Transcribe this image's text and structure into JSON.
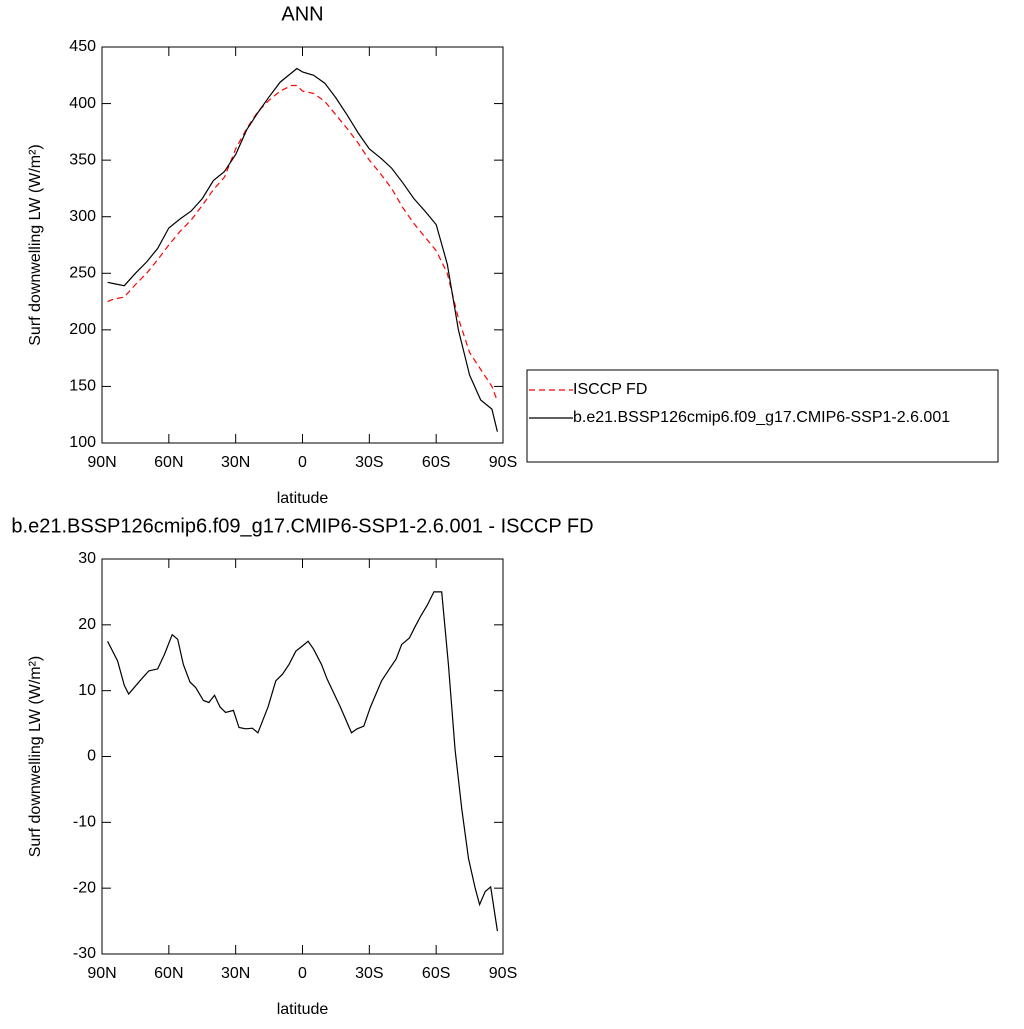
{
  "chart_data": [
    {
      "type": "line",
      "title": "ANN",
      "x_label": "latitude",
      "y_label": "Surf downwelling LW (W/m²)",
      "x": [
        87.5,
        85,
        80,
        75,
        70,
        65,
        60,
        55,
        50,
        45,
        40,
        35,
        30,
        25,
        20,
        15,
        10,
        5,
        2.5,
        0,
        -5,
        -10,
        -15,
        -20,
        -25,
        -30,
        -35,
        -40,
        -45,
        -50,
        -55,
        -60,
        -65,
        -70,
        -75,
        -80,
        -85,
        -87.5
      ],
      "series": [
        {
          "name": "ISCCP FD",
          "color": "#ff0000",
          "line_style": "dashed",
          "values": [
            225,
            227,
            229,
            240,
            250,
            262,
            275,
            287,
            297,
            310,
            324,
            335,
            360,
            378,
            393,
            403,
            411,
            416,
            416,
            411,
            409,
            402,
            390,
            378,
            365,
            350,
            338,
            325,
            308,
            294,
            282,
            270,
            250,
            210,
            180,
            165,
            150,
            137
          ]
        },
        {
          "name": "b.e21.BSSP126cmip6.f09_g17.CMIP6-SSP1-2.6.001",
          "color": "#000000",
          "line_style": "solid",
          "values": [
            242,
            241,
            239,
            250,
            260,
            272,
            290,
            298,
            305,
            316,
            332,
            340,
            355,
            377,
            392,
            406,
            419,
            427,
            431,
            428,
            425,
            418,
            405,
            390,
            374,
            360,
            352,
            343,
            330,
            316,
            305,
            293,
            258,
            200,
            160,
            138,
            130,
            110
          ]
        }
      ],
      "xlim": [
        90,
        -90
      ],
      "xticks": [
        {
          "value": 90,
          "label": "90N"
        },
        {
          "value": 60,
          "label": "60N"
        },
        {
          "value": 30,
          "label": "30N"
        },
        0,
        {
          "value": -30,
          "label": "30S"
        },
        {
          "value": -60,
          "label": "60S"
        },
        {
          "value": -90,
          "label": "90S"
        }
      ],
      "ylim": [
        100,
        450
      ],
      "yticks": [
        100,
        150,
        200,
        250,
        300,
        350,
        400,
        450
      ],
      "legend": "right"
    },
    {
      "type": "line",
      "title": "b.e21.BSSP126cmip6.f09_g17.CMIP6-SSP1-2.6.001 - ISCCP FD",
      "x_label": "latitude",
      "y_label": "Surf downwelling LW (W/m²)",
      "x": [
        87.5,
        83,
        80,
        78,
        73,
        69,
        65,
        62,
        58.5,
        56,
        53.5,
        50.5,
        48,
        44.5,
        42,
        39.5,
        37,
        34.5,
        31,
        28.5,
        25.5,
        22.5,
        20,
        15.5,
        12,
        9,
        6,
        3,
        0,
        -2.5,
        -5,
        -8.5,
        -11,
        -17,
        -22,
        -24.5,
        -27.5,
        -30.5,
        -35.5,
        -39,
        -42,
        -44.5,
        -48,
        -50.5,
        -53,
        -56,
        -59,
        -62.5,
        -65.5,
        -68.5,
        -71.5,
        -74.5,
        -77.5,
        -79.5,
        -82,
        -84.5,
        -87.5
      ],
      "series": [
        {
          "color": "#000000",
          "line_style": "solid",
          "values": [
            17.5,
            14.5,
            10.8,
            9.5,
            11.5,
            13,
            13.3,
            15.5,
            18.5,
            17.8,
            14,
            11.3,
            10.5,
            8.5,
            8.2,
            9.3,
            7.5,
            6.7,
            7,
            4.4,
            4.2,
            4.3,
            3.6,
            7.5,
            11.5,
            12.5,
            14,
            16,
            16.8,
            17.5,
            16.3,
            14,
            11.8,
            7.5,
            3.6,
            4.2,
            4.6,
            7.5,
            11.5,
            13.3,
            14.8,
            17,
            18,
            19.7,
            21.3,
            23,
            25,
            25,
            14,
            1,
            -8,
            -15.5,
            -20,
            -22.5,
            -20.5,
            -19.8,
            -26.5
          ]
        }
      ],
      "xlim": [
        90,
        -90
      ],
      "xticks": [
        {
          "value": 90,
          "label": "90N"
        },
        {
          "value": 60,
          "label": "60N"
        },
        {
          "value": 30,
          "label": "30N"
        },
        0,
        {
          "value": -30,
          "label": "30S"
        },
        {
          "value": -60,
          "label": "60S"
        },
        {
          "value": -90,
          "label": "90S"
        }
      ],
      "ylim": [
        -30,
        30
      ],
      "yticks": [
        -30,
        -20,
        -10,
        0,
        10,
        20,
        30
      ]
    }
  ]
}
